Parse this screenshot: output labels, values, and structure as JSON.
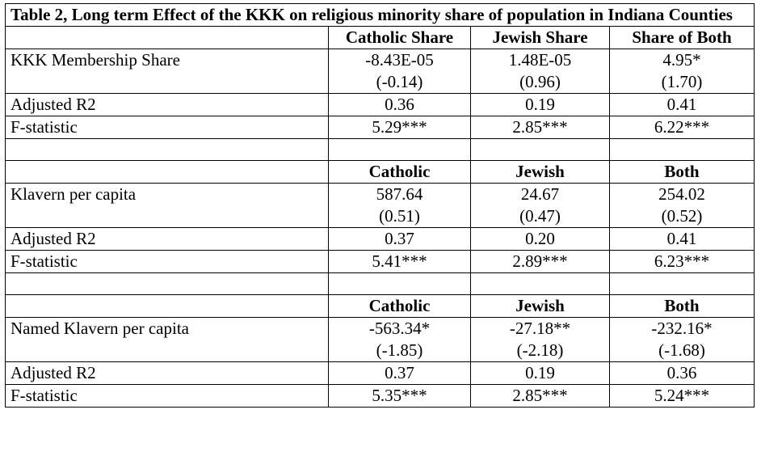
{
  "table": {
    "title": "Table 2, Long term Effect of the KKK on religious minority share of population in Indiana Counties",
    "panels": [
      {
        "headers": [
          "Catholic Share",
          "Jewish Share",
          "Share of Both"
        ],
        "variable_label": "KKK Membership Share",
        "coefficients": [
          "-8.43E-05",
          "1.48E-05",
          "4.95*"
        ],
        "tstats": [
          "(-0.14)",
          "(0.96)",
          "(1.70)"
        ],
        "r2_label": "Adjusted R2",
        "r2": [
          "0.36",
          "0.19",
          "0.41"
        ],
        "f_label": "F-statistic",
        "f": [
          "5.29***",
          "2.85***",
          "6.22***"
        ]
      },
      {
        "headers": [
          "Catholic",
          "Jewish",
          "Both"
        ],
        "variable_label": "Klavern per capita",
        "coefficients": [
          "587.64",
          "24.67",
          "254.02"
        ],
        "tstats": [
          "(0.51)",
          "(0.47)",
          "(0.52)"
        ],
        "r2_label": "Adjusted R2",
        "r2": [
          "0.37",
          "0.20",
          "0.41"
        ],
        "f_label": "F-statistic",
        "f": [
          "5.41***",
          "2.89***",
          "6.23***"
        ]
      },
      {
        "headers": [
          "Catholic",
          "Jewish",
          "Both"
        ],
        "variable_label": "Named Klavern per capita",
        "coefficients": [
          "-563.34*",
          "-27.18**",
          "-232.16*"
        ],
        "tstats": [
          "(-1.85)",
          "(-2.18)",
          "(-1.68)"
        ],
        "r2_label": "Adjusted R2",
        "r2": [
          "0.37",
          "0.19",
          "0.36"
        ],
        "f_label": "F-statistic",
        "f": [
          "5.35***",
          "2.85***",
          "5.24***"
        ]
      }
    ]
  }
}
